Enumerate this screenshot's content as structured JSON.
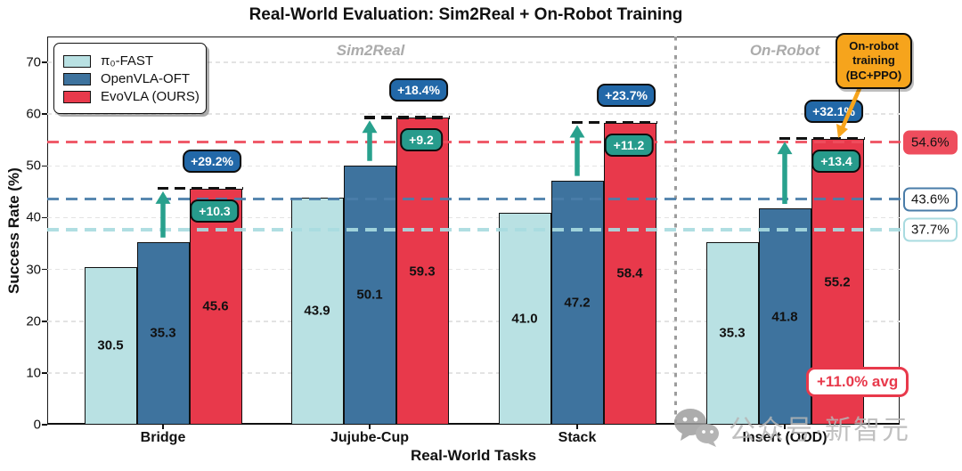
{
  "title": "Real-World Evaluation: Sim2Real + On-Robot Training",
  "chart_data": {
    "type": "bar",
    "title": "Real-World Evaluation: Sim2Real + On-Robot Training",
    "xlabel": "Real-World Tasks",
    "ylabel": "Success Rate (%)",
    "ylim": [
      0,
      75
    ],
    "yticks": [
      0,
      10,
      20,
      30,
      40,
      50,
      60,
      70
    ],
    "grid": true,
    "legend_position": "upper left",
    "categories": [
      "Bridge",
      "Jujube-Cup",
      "Stack",
      "Insert (OOD)"
    ],
    "series": [
      {
        "name": "π₀-FAST",
        "color": "#b9e1e3",
        "values": [
          30.5,
          43.9,
          41.0,
          35.3
        ]
      },
      {
        "name": "OpenVLA-OFT",
        "color": "#3e739e",
        "values": [
          35.3,
          50.1,
          47.2,
          41.8
        ]
      },
      {
        "name": "EvoVLA (OURS)",
        "color": "#e8394b",
        "values": [
          45.6,
          59.3,
          58.4,
          55.2
        ]
      }
    ],
    "sections": [
      {
        "label": "Sim2Real",
        "categories": [
          "Bridge",
          "Jujube-Cup",
          "Stack"
        ]
      },
      {
        "label": "On-Robot",
        "categories": [
          "Insert (OOD)"
        ]
      }
    ],
    "improvement_pct_badges": [
      "+29.2%",
      "+18.4%",
      "+23.7%",
      "+32.1%"
    ],
    "improvement_abs_badges": [
      "+10.3",
      "+9.2",
      "+11.2",
      "+13.4"
    ],
    "ref_lines": [
      {
        "value": 54.6,
        "label": "54.6%",
        "color": "#ee4d5d",
        "badge_style": "filled"
      },
      {
        "value": 43.6,
        "label": "43.6%",
        "color": "#4a7da9",
        "badge_style": "outlined"
      },
      {
        "value": 37.7,
        "label": "37.7%",
        "color": "#a9dbe0",
        "badge_style": "outlined"
      }
    ],
    "callout": {
      "lines": [
        "On-robot",
        "training",
        "(BC+PPO)"
      ],
      "color": "#f6a41c"
    },
    "avg_badge": "+11.0% avg",
    "annotation_colors": {
      "pct_badge": "#2268a8",
      "abs_badge": "#279b8c",
      "arrow": "#28a18d"
    }
  },
  "watermark": {
    "text": "公众号·新智元",
    "icon": "wechat-icon"
  }
}
